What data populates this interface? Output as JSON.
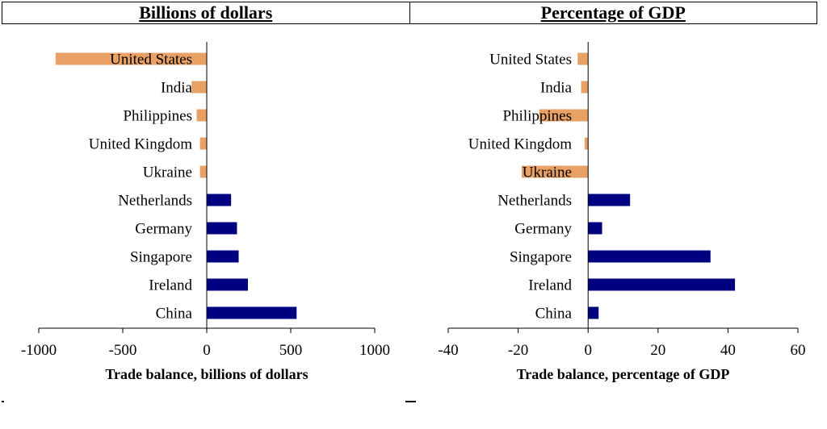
{
  "header": {
    "left_title": "Billions of dollars",
    "right_title": "Percentage of GDP"
  },
  "colors": {
    "negative": "#E8A064",
    "positive": "#000080",
    "axis": "#000000"
  },
  "chart_data": [
    {
      "type": "bar",
      "orientation": "horizontal",
      "title": "Billions of dollars",
      "xlabel": "Trade balance, billions of dollars",
      "ylabel": "",
      "xlim": [
        -1000,
        1000
      ],
      "xticks": [
        -1000,
        -500,
        0,
        500,
        1000
      ],
      "xtick_labels": [
        "-1000",
        "-500",
        "0",
        "500",
        "1000"
      ],
      "categories": [
        "United States",
        "India",
        "Philippines",
        "United Kingdom",
        "Ukraine",
        "Netherlands",
        "Germany",
        "Singapore",
        "Ireland",
        "China"
      ],
      "values": [
        -900,
        -90,
        -60,
        -40,
        -40,
        145,
        180,
        190,
        245,
        535
      ]
    },
    {
      "type": "bar",
      "orientation": "horizontal",
      "title": "Percentage of GDP",
      "xlabel": "Trade balance, percentage of GDP",
      "ylabel": "",
      "xlim": [
        -40,
        60
      ],
      "xticks": [
        -40,
        -20,
        0,
        20,
        40,
        60
      ],
      "xtick_labels": [
        "-40",
        "-20",
        "0",
        "20",
        "40",
        "60"
      ],
      "categories": [
        "United States",
        "India",
        "Philippines",
        "United Kingdom",
        "Ukraine",
        "Netherlands",
        "Germany",
        "Singapore",
        "Ireland",
        "China"
      ],
      "values": [
        -3,
        -2,
        -14,
        -1,
        -19,
        12,
        4,
        35,
        42,
        3
      ]
    }
  ]
}
